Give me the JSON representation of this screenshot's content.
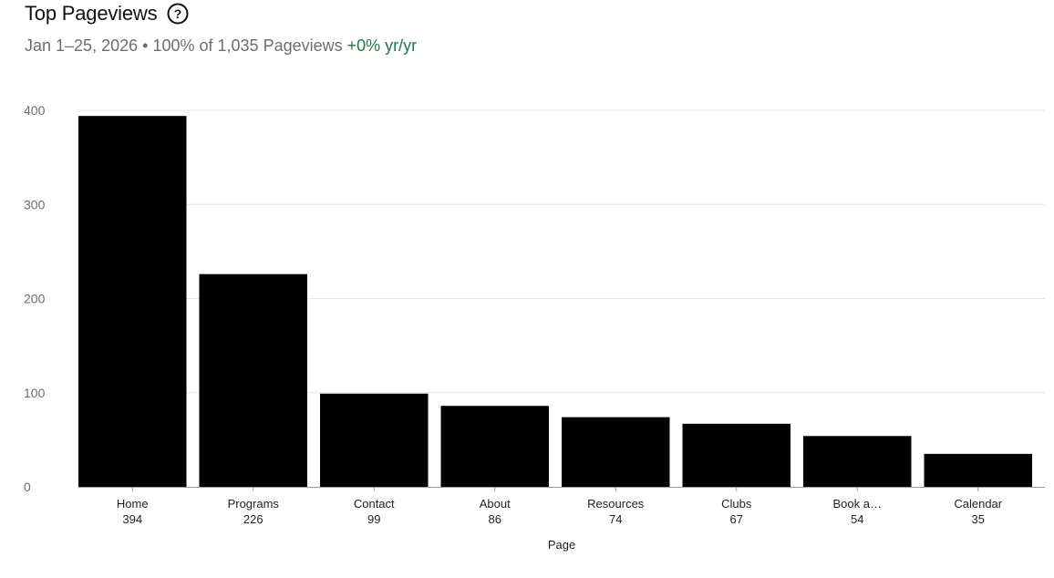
{
  "header": {
    "title": "Top Pageviews",
    "help_icon": "question-circle-icon",
    "date_range": "Jan 1–25, 2026",
    "separator": "•",
    "summary": "100% of 1,035 Pageviews",
    "change": "+0% yr/yr"
  },
  "colors": {
    "bar": "#000000",
    "grid": "#e6e6e6",
    "axis": "#9a9a9a",
    "change_positive": "#1e7a46",
    "muted_text": "#6e6e6e"
  },
  "chart_data": {
    "type": "bar",
    "title": "Top Pageviews",
    "xlabel": "Page",
    "ylabel": "",
    "categories": [
      "Home",
      "Programs",
      "Contact",
      "About",
      "Resources",
      "Clubs",
      "Book a…",
      "Calendar"
    ],
    "values": [
      394,
      226,
      99,
      86,
      74,
      67,
      54,
      35
    ],
    "value_labels": [
      "394",
      "226",
      "99",
      "86",
      "74",
      "67",
      "54",
      "35"
    ],
    "y_ticks": [
      0,
      100,
      200,
      300,
      400
    ],
    "ylim": [
      0,
      400
    ],
    "grid": true,
    "legend": "none"
  }
}
